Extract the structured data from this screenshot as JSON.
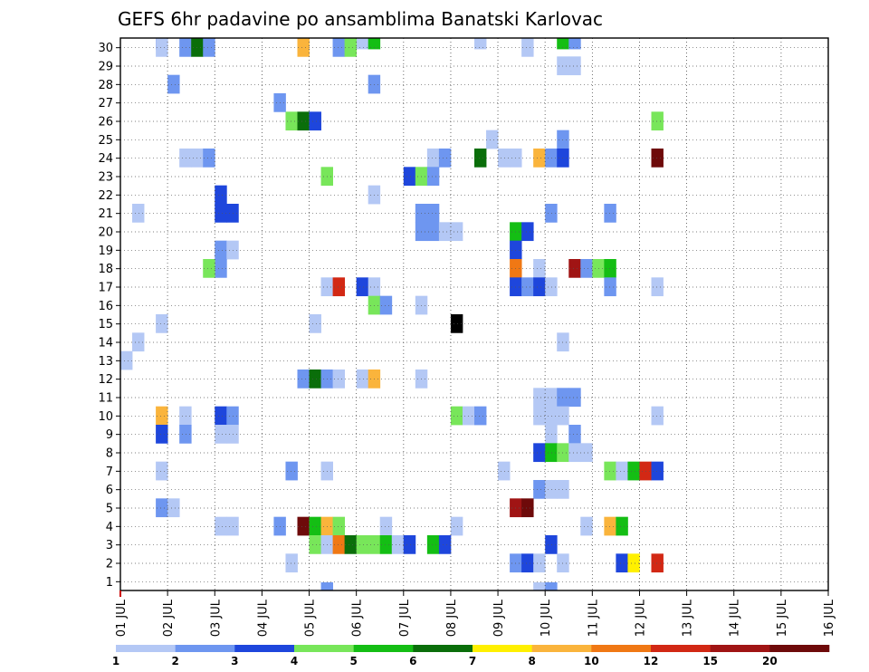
{
  "chart_data": {
    "type": "heatmap",
    "title": "GEFS 6hr padavine po ansamblima Banatski Karlovac",
    "x_tick_labels": [
      "01 JUL",
      "02 JUL",
      "03 JUL",
      "04 JUL",
      "05 JUL",
      "06 JUL",
      "07 JUL",
      "08 JUL",
      "09 JUL",
      "10 JUL",
      "11 JUL",
      "12 JUL",
      "13 JUL",
      "14 JUL",
      "15 JUL",
      "16 JUL"
    ],
    "y_tick_labels": [
      "1",
      "2",
      "3",
      "4",
      "5",
      "6",
      "7",
      "8",
      "9",
      "10",
      "11",
      "12",
      "13",
      "14",
      "15",
      "16",
      "17",
      "18",
      "19",
      "20",
      "21",
      "22",
      "23",
      "24",
      "25",
      "26",
      "27",
      "28",
      "29",
      "30"
    ],
    "x_unit": "6-hour steps from 01 JUL",
    "grid": true,
    "colorbar": {
      "labels": [
        "1",
        "2",
        "3",
        "4",
        "5",
        "6",
        "7",
        "8",
        "10",
        "12",
        "15",
        "20"
      ],
      "colors": [
        "#b4c8f5",
        "#6e96f0",
        "#1e46dc",
        "#78e65a",
        "#14be14",
        "#0a6e0a",
        "#fff000",
        "#fab43c",
        "#f07814",
        "#d22814",
        "#a01414",
        "#6e0a0a"
      ]
    },
    "cells": [
      [
        2,
        30,
        3
      ],
      [
        17,
        30,
        1
      ],
      [
        19,
        30,
        1
      ],
      [
        20,
        30,
        5
      ],
      [
        29,
        30,
        1
      ],
      [
        36,
        30,
        5
      ],
      [
        37,
        30,
        2
      ],
      [
        2,
        29,
        1
      ],
      [
        4,
        29,
        2
      ],
      [
        5,
        29,
        6
      ],
      [
        6,
        29,
        2
      ],
      [
        14,
        29,
        8
      ],
      [
        17,
        29,
        2
      ],
      [
        18,
        29,
        4
      ],
      [
        33,
        29,
        1
      ],
      [
        36,
        28,
        1
      ],
      [
        37,
        28,
        1
      ],
      [
        3,
        27,
        2
      ],
      [
        20,
        27,
        2
      ],
      [
        12,
        26,
        2
      ],
      [
        13,
        25,
        4
      ],
      [
        14,
        25,
        6
      ],
      [
        15,
        25,
        3
      ],
      [
        44,
        25,
        4
      ],
      [
        30,
        24,
        1
      ],
      [
        36,
        24,
        2
      ],
      [
        4,
        23,
        1
      ],
      [
        5,
        23,
        1
      ],
      [
        6,
        23,
        2
      ],
      [
        25,
        23,
        1
      ],
      [
        26,
        23,
        2
      ],
      [
        29,
        23,
        6
      ],
      [
        31,
        23,
        1
      ],
      [
        32,
        23,
        1
      ],
      [
        34,
        23,
        8
      ],
      [
        35,
        23,
        2
      ],
      [
        36,
        23,
        3
      ],
      [
        44,
        23,
        12
      ],
      [
        16,
        22,
        4
      ],
      [
        23,
        22,
        3
      ],
      [
        24,
        22,
        4
      ],
      [
        25,
        22,
        2
      ],
      [
        7,
        21,
        3
      ],
      [
        20,
        21,
        1
      ],
      [
        0,
        20,
        1
      ],
      [
        7,
        20,
        3
      ],
      [
        8,
        20,
        3
      ],
      [
        24,
        20,
        2
      ],
      [
        25,
        20,
        2
      ],
      [
        35,
        20,
        2
      ],
      [
        40,
        20,
        2
      ],
      [
        24,
        19,
        2
      ],
      [
        25,
        19,
        2
      ],
      [
        26,
        19,
        1
      ],
      [
        27,
        19,
        1
      ],
      [
        32,
        19,
        5
      ],
      [
        33,
        19,
        3
      ],
      [
        7,
        18,
        2
      ],
      [
        8,
        18,
        1
      ],
      [
        32,
        18,
        3
      ],
      [
        7,
        17,
        2
      ],
      [
        6,
        17,
        4
      ],
      [
        32,
        17,
        9
      ],
      [
        34,
        17,
        1
      ],
      [
        37,
        17,
        11
      ],
      [
        38,
        17,
        2
      ],
      [
        39,
        17,
        4
      ],
      [
        40,
        17,
        5
      ],
      [
        16,
        16,
        1
      ],
      [
        17,
        16,
        10
      ],
      [
        19,
        16,
        3
      ],
      [
        20,
        16,
        1
      ],
      [
        32,
        16,
        3
      ],
      [
        33,
        16,
        2
      ],
      [
        34,
        16,
        3
      ],
      [
        35,
        16,
        1
      ],
      [
        40,
        16,
        2
      ],
      [
        44,
        16,
        1
      ],
      [
        20,
        15,
        4
      ],
      [
        21,
        15,
        2
      ],
      [
        24,
        15,
        1
      ],
      [
        2,
        14,
        1
      ],
      [
        15,
        14,
        1
      ],
      [
        27,
        14,
        13
      ],
      [
        0,
        13,
        1
      ],
      [
        36,
        13,
        1
      ],
      [
        -1,
        12,
        1
      ],
      [
        14,
        11,
        2
      ],
      [
        15,
        11,
        6
      ],
      [
        16,
        11,
        2
      ],
      [
        17,
        11,
        1
      ],
      [
        19,
        11,
        1
      ],
      [
        20,
        11,
        8
      ],
      [
        24,
        11,
        1
      ],
      [
        34,
        10,
        1
      ],
      [
        35,
        10,
        1
      ],
      [
        36,
        10,
        2
      ],
      [
        37,
        10,
        2
      ],
      [
        2,
        9,
        8
      ],
      [
        4,
        9,
        1
      ],
      [
        7,
        9,
        3
      ],
      [
        8,
        9,
        2
      ],
      [
        27,
        9,
        4
      ],
      [
        28,
        9,
        1
      ],
      [
        29,
        9,
        2
      ],
      [
        34,
        9,
        1
      ],
      [
        35,
        9,
        1
      ],
      [
        36,
        9,
        1
      ],
      [
        44,
        9,
        1
      ],
      [
        2,
        8,
        3
      ],
      [
        4,
        8,
        2
      ],
      [
        7,
        8,
        1
      ],
      [
        8,
        8,
        1
      ],
      [
        35,
        8,
        1
      ],
      [
        37,
        8,
        2
      ],
      [
        34,
        7,
        3
      ],
      [
        35,
        7,
        5
      ],
      [
        36,
        7,
        4
      ],
      [
        37,
        7,
        1
      ],
      [
        38,
        7,
        1
      ],
      [
        2,
        6,
        1
      ],
      [
        13,
        6,
        2
      ],
      [
        16,
        6,
        1
      ],
      [
        31,
        6,
        1
      ],
      [
        40,
        6,
        4
      ],
      [
        41,
        6,
        1
      ],
      [
        42,
        6,
        5
      ],
      [
        43,
        6,
        10
      ],
      [
        44,
        6,
        3
      ],
      [
        34,
        5,
        2
      ],
      [
        35,
        5,
        1
      ],
      [
        36,
        5,
        1
      ],
      [
        2,
        4,
        2
      ],
      [
        3,
        4,
        1
      ],
      [
        32,
        4,
        11
      ],
      [
        33,
        4,
        12
      ],
      [
        7,
        3,
        1
      ],
      [
        8,
        3,
        1
      ],
      [
        12,
        3,
        2
      ],
      [
        14,
        3,
        12
      ],
      [
        15,
        3,
        5
      ],
      [
        16,
        3,
        8
      ],
      [
        17,
        3,
        4
      ],
      [
        21,
        3,
        1
      ],
      [
        27,
        3,
        1
      ],
      [
        38,
        3,
        1
      ],
      [
        40,
        3,
        8
      ],
      [
        41,
        3,
        5
      ],
      [
        15,
        2,
        4
      ],
      [
        16,
        2,
        1
      ],
      [
        17,
        2,
        9
      ],
      [
        18,
        2,
        6
      ],
      [
        19,
        2,
        4
      ],
      [
        20,
        2,
        4
      ],
      [
        21,
        2,
        5
      ],
      [
        22,
        2,
        1
      ],
      [
        23,
        2,
        3
      ],
      [
        25,
        2,
        5
      ],
      [
        26,
        2,
        3
      ],
      [
        35,
        2,
        3
      ],
      [
        13,
        1,
        1
      ],
      [
        32,
        1,
        2
      ],
      [
        33,
        1,
        3
      ],
      [
        34,
        1,
        1
      ],
      [
        36,
        1,
        1
      ],
      [
        41,
        1,
        3
      ],
      [
        42,
        1,
        7
      ],
      [
        44,
        1,
        10
      ],
      [
        16,
        0,
        2
      ],
      [
        34,
        0,
        1
      ],
      [
        35,
        0,
        2
      ]
    ]
  }
}
